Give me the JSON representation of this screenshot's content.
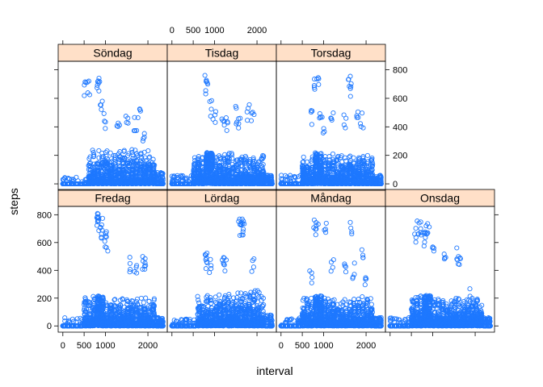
{
  "chart_data": {
    "type": "scatter",
    "xlabel": "interval",
    "ylabel": "steps",
    "xlim": [
      -110,
      2455
    ],
    "ylim": [
      -45,
      860
    ],
    "x_ticks": [
      0,
      500,
      1000,
      2000
    ],
    "x_tick_labels": [
      "0",
      "500",
      "1000",
      "2000"
    ],
    "y_ticks": [
      0,
      200,
      400,
      600,
      800
    ],
    "y_tick_labels": [
      "0",
      "200",
      "400",
      "600",
      "800"
    ],
    "strip_color": "#ffe0c8",
    "point_color": "#1e78ff",
    "grid": false,
    "layout": "2 rows x 4 columns (lattice xyplot)",
    "panels": [
      {
        "label": "Fredag",
        "row": 1,
        "col": 1,
        "profile": "weekday",
        "peaks": [
          [
            800,
            810
          ],
          [
            830,
            790
          ],
          [
            850,
            800
          ],
          [
            900,
            780
          ],
          [
            930,
            760
          ],
          [
            1000,
            700
          ],
          [
            1030,
            650
          ],
          [
            1600,
            500
          ],
          [
            1700,
            480
          ],
          [
            1900,
            520
          ],
          [
            1930,
            530
          ]
        ]
      },
      {
        "label": "Lördag",
        "row": 1,
        "col": 2,
        "profile": "weekend",
        "peaks": [
          [
            800,
            520
          ],
          [
            830,
            540
          ],
          [
            900,
            500
          ],
          [
            1200,
            540
          ],
          [
            1250,
            520
          ],
          [
            1600,
            780
          ],
          [
            1630,
            770
          ],
          [
            1650,
            760
          ],
          [
            1700,
            740
          ],
          [
            1900,
            500
          ]
        ]
      },
      {
        "label": "Måndag",
        "row": 1,
        "col": 3,
        "profile": "weekday",
        "peaks": [
          [
            700,
            400
          ],
          [
            800,
            780
          ],
          [
            850,
            770
          ],
          [
            1030,
            780
          ],
          [
            1200,
            520
          ],
          [
            1500,
            450
          ],
          [
            1630,
            780
          ],
          [
            1700,
            470
          ],
          [
            1900,
            590
          ],
          [
            2000,
            400
          ]
        ]
      },
      {
        "label": "Onsdag",
        "row": 1,
        "col": 4,
        "profile": "weekday",
        "peaks": [
          [
            600,
            710
          ],
          [
            650,
            760
          ],
          [
            700,
            780
          ],
          [
            800,
            700
          ],
          [
            850,
            760
          ],
          [
            900,
            790
          ],
          [
            1000,
            650
          ],
          [
            1300,
            550
          ],
          [
            1600,
            570
          ],
          [
            1630,
            540
          ],
          [
            1900,
            280
          ]
        ]
      },
      {
        "label": "Söndag",
        "row": 2,
        "col": 1,
        "profile": "weekend",
        "peaks": [
          [
            530,
            740
          ],
          [
            600,
            730
          ],
          [
            830,
            760
          ],
          [
            860,
            750
          ],
          [
            900,
            600
          ],
          [
            1000,
            500
          ],
          [
            1300,
            490
          ],
          [
            1500,
            480
          ],
          [
            1700,
            500
          ],
          [
            1800,
            550
          ],
          [
            1900,
            420
          ]
        ]
      },
      {
        "label": "Tisdag",
        "row": 2,
        "col": 2,
        "profile": "weekday",
        "peaks": [
          [
            800,
            800
          ],
          [
            830,
            760
          ],
          [
            900,
            600
          ],
          [
            1000,
            550
          ],
          [
            1200,
            520
          ],
          [
            1300,
            500
          ],
          [
            1500,
            550
          ],
          [
            1600,
            500
          ],
          [
            1800,
            560
          ],
          [
            1900,
            540
          ]
        ]
      },
      {
        "label": "Torsdag",
        "row": 2,
        "col": 3,
        "profile": "weekday",
        "peaks": [
          [
            700,
            520
          ],
          [
            800,
            760
          ],
          [
            850,
            750
          ],
          [
            900,
            500
          ],
          [
            1000,
            480
          ],
          [
            1200,
            530
          ],
          [
            1500,
            500
          ],
          [
            1600,
            760
          ],
          [
            1630,
            740
          ],
          [
            1800,
            520
          ],
          [
            1900,
            510
          ]
        ]
      }
    ]
  }
}
